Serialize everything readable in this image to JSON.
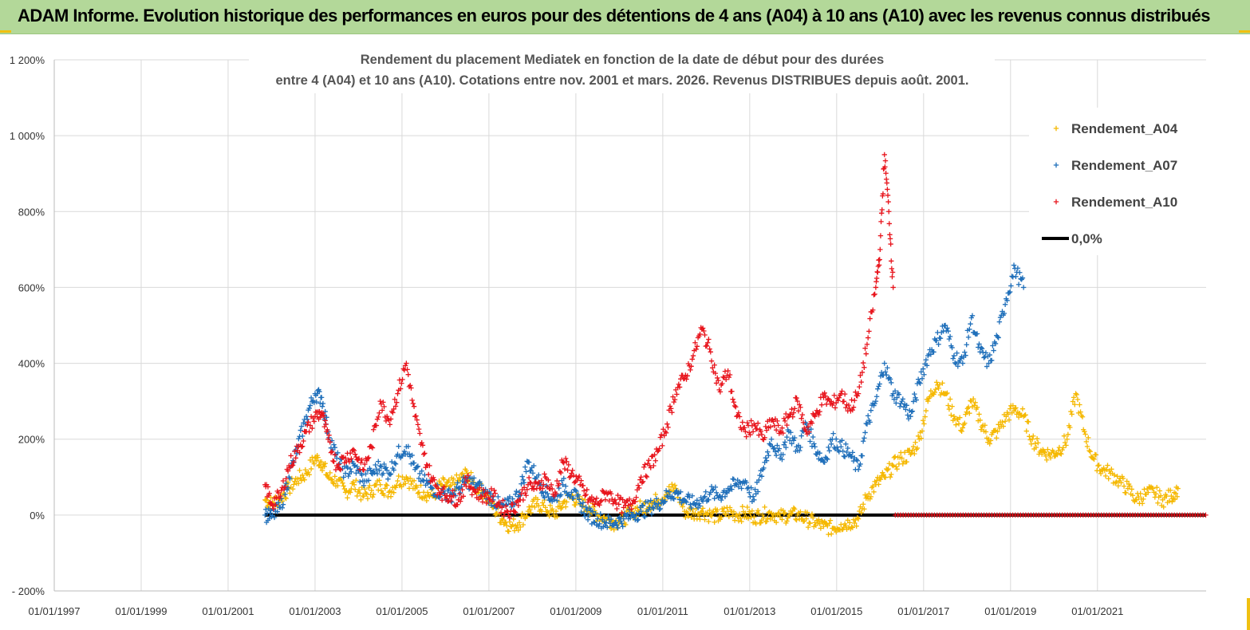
{
  "banner": {
    "text": "ADAM Informe. Evolution historique des performances en euros pour des détentions de 4 ans (A04) à 10 ans (A10) avec les revenus connus distribués"
  },
  "colors": {
    "banner_bg": "#b3d899",
    "a04": "#f5b800",
    "a07": "#1f6fba",
    "a10": "#e8141c",
    "zero": "#000000",
    "grid": "#d9d9d9"
  },
  "chart_data": {
    "type": "scatter",
    "title_lines": [
      "Rendement du placement Mediatek  en fonction de la date de début pour des durées",
      "entre 4 (A04) et 10 ans (A10).  Cotations entre nov. 2001 et mars. 2026.  Revenus DISTRIBUES depuis août. 2001."
    ],
    "y_tick_labels": [
      "- 200%",
      "0%",
      "200%",
      "400%",
      "600%",
      "800%",
      "1 000%",
      "1 200%"
    ],
    "y_ticks": [
      -200,
      0,
      200,
      400,
      600,
      800,
      1000,
      1200
    ],
    "ylim": [
      -200,
      1200
    ],
    "x_tick_labels": [
      "01/01/1997",
      "01/01/1999",
      "01/01/2001",
      "01/01/2003",
      "01/01/2005",
      "01/01/2007",
      "01/01/2009",
      "01/01/2011",
      "01/01/2013",
      "01/01/2015",
      "01/01/2017",
      "01/01/2019",
      "01/01/2021"
    ],
    "x_ticks": [
      1997,
      1999,
      2001,
      2003,
      2005,
      2007,
      2009,
      2011,
      2013,
      2015,
      2017,
      2019,
      2021
    ],
    "xlim": [
      1997,
      2023.5
    ],
    "grid": true,
    "legend_position": "top-right",
    "series": [
      {
        "name": "Rendement_A04",
        "color": "#f5b800",
        "marker": "+",
        "points": [
          [
            2001.85,
            40
          ],
          [
            2002.0,
            30
          ],
          [
            2002.2,
            45
          ],
          [
            2002.4,
            70
          ],
          [
            2002.6,
            95
          ],
          [
            2002.8,
            110
          ],
          [
            2003.0,
            150
          ],
          [
            2003.15,
            140
          ],
          [
            2003.3,
            100
          ],
          [
            2003.5,
            90
          ],
          [
            2003.7,
            60
          ],
          [
            2003.9,
            80
          ],
          [
            2004.1,
            50
          ],
          [
            2004.3,
            65
          ],
          [
            2004.5,
            80
          ],
          [
            2004.7,
            60
          ],
          [
            2004.9,
            90
          ],
          [
            2005.1,
            100
          ],
          [
            2005.3,
            70
          ],
          [
            2005.5,
            60
          ],
          [
            2005.7,
            50
          ],
          [
            2005.9,
            80
          ],
          [
            2006.1,
            75
          ],
          [
            2006.3,
            90
          ],
          [
            2006.5,
            110
          ],
          [
            2006.7,
            70
          ],
          [
            2006.9,
            60
          ],
          [
            2007.1,
            20
          ],
          [
            2007.3,
            -10
          ],
          [
            2007.5,
            -30
          ],
          [
            2007.7,
            -20
          ],
          [
            2007.9,
            10
          ],
          [
            2008.1,
            30
          ],
          [
            2008.3,
            20
          ],
          [
            2008.5,
            0
          ],
          [
            2008.7,
            30
          ],
          [
            2008.9,
            50
          ],
          [
            2009.1,
            30
          ],
          [
            2009.3,
            20
          ],
          [
            2009.5,
            0
          ],
          [
            2009.7,
            -10
          ],
          [
            2009.9,
            -20
          ],
          [
            2010.1,
            -10
          ],
          [
            2010.3,
            10
          ],
          [
            2010.5,
            20
          ],
          [
            2010.7,
            30
          ],
          [
            2010.9,
            40
          ],
          [
            2011.1,
            60
          ],
          [
            2011.3,
            70
          ],
          [
            2011.5,
            10
          ],
          [
            2011.7,
            5
          ],
          [
            2011.9,
            10
          ],
          [
            2012.1,
            0
          ],
          [
            2012.3,
            -5
          ],
          [
            2012.5,
            10
          ],
          [
            2012.7,
            0
          ],
          [
            2012.9,
            5
          ],
          [
            2013.1,
            -5
          ],
          [
            2013.3,
            0
          ],
          [
            2013.5,
            5
          ],
          [
            2013.7,
            -5
          ],
          [
            2013.9,
            0
          ],
          [
            2014.1,
            0
          ],
          [
            2014.3,
            -10
          ],
          [
            2014.5,
            -20
          ],
          [
            2014.7,
            -30
          ],
          [
            2014.9,
            -35
          ],
          [
            2015.1,
            -25
          ],
          [
            2015.3,
            -20
          ],
          [
            2015.5,
            -10
          ],
          [
            2015.7,
            50
          ],
          [
            2015.9,
            80
          ],
          [
            2016.1,
            100
          ],
          [
            2016.3,
            130
          ],
          [
            2016.5,
            150
          ],
          [
            2016.7,
            160
          ],
          [
            2016.9,
            200
          ],
          [
            2017.1,
            300
          ],
          [
            2017.3,
            350
          ],
          [
            2017.5,
            320
          ],
          [
            2017.7,
            260
          ],
          [
            2017.9,
            230
          ],
          [
            2018.1,
            300
          ],
          [
            2018.3,
            250
          ],
          [
            2018.5,
            200
          ],
          [
            2018.7,
            220
          ],
          [
            2018.9,
            260
          ],
          [
            2019.1,
            280
          ],
          [
            2019.3,
            260
          ],
          [
            2019.5,
            200
          ],
          [
            2019.7,
            170
          ],
          [
            2019.9,
            160
          ],
          [
            2020.1,
            170
          ],
          [
            2020.3,
            200
          ],
          [
            2020.5,
            320
          ],
          [
            2020.7,
            220
          ],
          [
            2020.9,
            150
          ],
          [
            2021.1,
            120
          ],
          [
            2021.3,
            110
          ],
          [
            2021.5,
            90
          ],
          [
            2021.7,
            70
          ],
          [
            2021.9,
            40
          ],
          [
            2022.1,
            55
          ],
          [
            2022.3,
            60
          ],
          [
            2022.5,
            40
          ],
          [
            2022.7,
            50
          ],
          [
            2022.85,
            70
          ]
        ]
      },
      {
        "name": "Rendement_A07",
        "color": "#1f6fba",
        "marker": "+",
        "points": [
          [
            2001.85,
            0
          ],
          [
            2002.0,
            -5
          ],
          [
            2002.2,
            20
          ],
          [
            2002.4,
            100
          ],
          [
            2002.6,
            180
          ],
          [
            2002.8,
            260
          ],
          [
            2003.0,
            320
          ],
          [
            2003.15,
            310
          ],
          [
            2003.3,
            220
          ],
          [
            2003.5,
            150
          ],
          [
            2003.7,
            110
          ],
          [
            2003.9,
            130
          ],
          [
            2004.1,
            90
          ],
          [
            2004.3,
            110
          ],
          [
            2004.5,
            130
          ],
          [
            2004.7,
            110
          ],
          [
            2004.9,
            160
          ],
          [
            2005.1,
            180
          ],
          [
            2005.3,
            120
          ],
          [
            2005.5,
            90
          ],
          [
            2005.7,
            70
          ],
          [
            2005.9,
            60
          ],
          [
            2006.1,
            50
          ],
          [
            2006.3,
            70
          ],
          [
            2006.5,
            90
          ],
          [
            2006.7,
            80
          ],
          [
            2006.9,
            60
          ],
          [
            2007.1,
            40
          ],
          [
            2007.3,
            20
          ],
          [
            2007.5,
            30
          ],
          [
            2007.7,
            60
          ],
          [
            2007.9,
            140
          ],
          [
            2008.1,
            100
          ],
          [
            2008.3,
            60
          ],
          [
            2008.5,
            40
          ],
          [
            2008.7,
            80
          ],
          [
            2008.9,
            60
          ],
          [
            2009.1,
            30
          ],
          [
            2009.3,
            0
          ],
          [
            2009.5,
            -10
          ],
          [
            2009.7,
            -20
          ],
          [
            2009.9,
            -20
          ],
          [
            2010.1,
            -10
          ],
          [
            2010.3,
            0
          ],
          [
            2010.5,
            10
          ],
          [
            2010.7,
            20
          ],
          [
            2010.9,
            30
          ],
          [
            2011.1,
            50
          ],
          [
            2011.3,
            60
          ],
          [
            2011.5,
            40
          ],
          [
            2011.7,
            30
          ],
          [
            2011.9,
            40
          ],
          [
            2012.1,
            60
          ],
          [
            2012.3,
            50
          ],
          [
            2012.5,
            70
          ],
          [
            2012.7,
            80
          ],
          [
            2012.9,
            90
          ],
          [
            2013.1,
            40
          ],
          [
            2013.3,
            120
          ],
          [
            2013.5,
            200
          ],
          [
            2013.7,
            150
          ],
          [
            2013.9,
            220
          ],
          [
            2014.1,
            170
          ],
          [
            2014.3,
            240
          ],
          [
            2014.5,
            180
          ],
          [
            2014.7,
            140
          ],
          [
            2014.9,
            200
          ],
          [
            2015.1,
            180
          ],
          [
            2015.3,
            160
          ],
          [
            2015.5,
            120
          ],
          [
            2015.7,
            240
          ],
          [
            2015.9,
            300
          ],
          [
            2016.1,
            400
          ],
          [
            2016.3,
            320
          ],
          [
            2016.5,
            300
          ],
          [
            2016.7,
            260
          ],
          [
            2016.9,
            350
          ],
          [
            2017.1,
            420
          ],
          [
            2017.3,
            460
          ],
          [
            2017.5,
            500
          ],
          [
            2017.7,
            420
          ],
          [
            2017.9,
            400
          ],
          [
            2018.1,
            520
          ],
          [
            2018.3,
            430
          ],
          [
            2018.5,
            400
          ],
          [
            2018.7,
            470
          ],
          [
            2018.9,
            570
          ],
          [
            2019.1,
            650
          ],
          [
            2019.3,
            600
          ]
        ]
      },
      {
        "name": "Rendement_A10",
        "color": "#e8141c",
        "marker": "+",
        "points": [
          [
            2001.85,
            80
          ],
          [
            2002.0,
            30
          ],
          [
            2002.2,
            50
          ],
          [
            2002.4,
            130
          ],
          [
            2002.6,
            170
          ],
          [
            2002.8,
            220
          ],
          [
            2003.0,
            260
          ],
          [
            2003.15,
            270
          ],
          [
            2003.3,
            200
          ],
          [
            2003.5,
            130
          ],
          [
            2003.7,
            150
          ],
          [
            2003.9,
            170
          ],
          [
            2004.1,
            120
          ],
          [
            2004.3,
            180
          ],
          [
            2004.5,
            300
          ],
          [
            2004.7,
            250
          ],
          [
            2004.9,
            320
          ],
          [
            2005.1,
            400
          ],
          [
            2005.3,
            260
          ],
          [
            2005.5,
            160
          ],
          [
            2005.7,
            90
          ],
          [
            2005.9,
            60
          ],
          [
            2006.1,
            50
          ],
          [
            2006.3,
            40
          ],
          [
            2006.5,
            90
          ],
          [
            2006.7,
            60
          ],
          [
            2006.9,
            50
          ],
          [
            2007.1,
            50
          ],
          [
            2007.3,
            20
          ],
          [
            2007.5,
            10
          ],
          [
            2007.7,
            40
          ],
          [
            2007.9,
            80
          ],
          [
            2008.1,
            70
          ],
          [
            2008.3,
            100
          ],
          [
            2008.5,
            50
          ],
          [
            2008.7,
            140
          ],
          [
            2008.9,
            110
          ],
          [
            2009.1,
            80
          ],
          [
            2009.3,
            40
          ],
          [
            2009.5,
            30
          ],
          [
            2009.7,
            60
          ],
          [
            2009.9,
            40
          ],
          [
            2010.1,
            20
          ],
          [
            2010.3,
            30
          ],
          [
            2010.5,
            100
          ],
          [
            2010.7,
            130
          ],
          [
            2010.9,
            170
          ],
          [
            2011.1,
            240
          ],
          [
            2011.3,
            330
          ],
          [
            2011.5,
            360
          ],
          [
            2011.7,
            420
          ],
          [
            2011.9,
            490
          ],
          [
            2012.1,
            430
          ],
          [
            2012.3,
            330
          ],
          [
            2012.5,
            380
          ],
          [
            2012.7,
            260
          ],
          [
            2012.9,
            220
          ],
          [
            2013.1,
            240
          ],
          [
            2013.3,
            200
          ],
          [
            2013.5,
            250
          ],
          [
            2013.7,
            220
          ],
          [
            2013.9,
            260
          ],
          [
            2014.1,
            300
          ],
          [
            2014.3,
            220
          ],
          [
            2014.5,
            260
          ],
          [
            2014.7,
            310
          ],
          [
            2014.9,
            290
          ],
          [
            2015.1,
            320
          ],
          [
            2015.3,
            280
          ],
          [
            2015.5,
            320
          ],
          [
            2015.7,
            450
          ],
          [
            2015.9,
            600
          ],
          [
            2016.0,
            700
          ],
          [
            2016.1,
            950
          ],
          [
            2016.2,
            800
          ],
          [
            2016.3,
            600
          ]
        ]
      },
      {
        "name": "0,0%",
        "color": "#000000",
        "type": "line",
        "x": [
          2001.85,
          2023.5
        ],
        "y": [
          0,
          0
        ]
      }
    ],
    "a10_zero_markers": {
      "x_from": 2016.35,
      "x_to": 2023.5,
      "y": 0,
      "color": "#e8141c"
    }
  }
}
